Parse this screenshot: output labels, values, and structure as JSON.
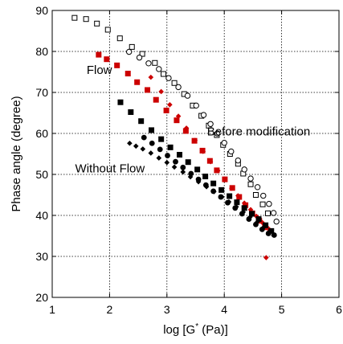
{
  "chart_data": {
    "type": "scatter",
    "title": "",
    "xlabel": "log [G",
    "xlabel_sup": "*",
    "xlabel_tail": " (Pa)]",
    "ylabel": "Phase angle (degree)",
    "xlim": [
      1,
      6
    ],
    "ylim": [
      20,
      90
    ],
    "xticks": [
      1,
      2,
      3,
      4,
      5,
      6
    ],
    "yticks": [
      20,
      30,
      40,
      50,
      60,
      70,
      80,
      90
    ],
    "grid": "dotted",
    "annotations": [
      {
        "text": "Flow",
        "x": 1.6,
        "y": 74.5
      },
      {
        "text": "Before modification",
        "x": 3.7,
        "y": 59.5
      },
      {
        "text": "Without Flow",
        "x": 1.4,
        "y": 50.5
      }
    ],
    "series": [
      {
        "marker": "open-square",
        "color": "#000000",
        "points": [
          [
            1.39,
            88.2
          ],
          [
            1.59,
            87.9
          ],
          [
            1.78,
            86.8
          ],
          [
            1.97,
            85.3
          ],
          [
            2.18,
            83.2
          ],
          [
            2.39,
            81.1
          ],
          [
            2.57,
            79.4
          ],
          [
            2.79,
            77.2
          ],
          [
            2.94,
            74.5
          ],
          [
            3.13,
            72.3
          ],
          [
            3.3,
            69.6
          ],
          [
            3.45,
            66.8
          ],
          [
            3.6,
            64.3
          ],
          [
            3.73,
            61.9
          ],
          [
            3.87,
            59.6
          ],
          [
            3.98,
            57.2
          ],
          [
            4.1,
            55.0
          ],
          [
            4.24,
            52.6
          ],
          [
            4.33,
            50.2
          ],
          [
            4.46,
            47.6
          ],
          [
            4.55,
            45.0
          ],
          [
            4.67,
            42.7
          ],
          [
            4.76,
            40.5
          ]
        ]
      },
      {
        "marker": "open-circle",
        "color": "#000000",
        "points": [
          [
            2.34,
            79.9
          ],
          [
            2.52,
            78.5
          ],
          [
            2.68,
            77.1
          ],
          [
            2.86,
            75.7
          ],
          [
            3.03,
            73.5
          ],
          [
            3.2,
            71.3
          ],
          [
            3.36,
            69.2
          ],
          [
            3.51,
            66.8
          ],
          [
            3.64,
            64.5
          ],
          [
            3.76,
            62.3
          ],
          [
            3.88,
            60.0
          ],
          [
            4.0,
            57.7
          ],
          [
            4.12,
            55.6
          ],
          [
            4.24,
            53.4
          ],
          [
            4.35,
            51.2
          ],
          [
            4.46,
            49.0
          ],
          [
            4.58,
            46.9
          ],
          [
            4.68,
            44.8
          ],
          [
            4.78,
            42.8
          ],
          [
            4.86,
            40.6
          ],
          [
            4.91,
            38.5
          ]
        ]
      },
      {
        "marker": "filled-square",
        "color": "#cc0000",
        "points": [
          [
            1.81,
            79.2
          ],
          [
            1.95,
            78.1
          ],
          [
            2.13,
            76.6
          ],
          [
            2.32,
            74.6
          ],
          [
            2.48,
            72.5
          ],
          [
            2.66,
            70.6
          ],
          [
            2.81,
            68.2
          ],
          [
            2.99,
            65.6
          ],
          [
            3.17,
            63.2
          ],
          [
            3.33,
            60.6
          ],
          [
            3.48,
            58.2
          ],
          [
            3.62,
            55.8
          ],
          [
            3.75,
            53.3
          ],
          [
            3.87,
            51.0
          ],
          [
            4.01,
            48.8
          ],
          [
            4.14,
            46.7
          ],
          [
            4.26,
            44.5
          ],
          [
            4.37,
            42.5
          ],
          [
            4.49,
            40.5
          ],
          [
            4.61,
            38.7
          ],
          [
            4.71,
            37.1
          ]
        ]
      },
      {
        "marker": "filled-diamond",
        "color": "#cc0000",
        "points": [
          [
            2.72,
            73.7
          ],
          [
            2.9,
            70.2
          ],
          [
            3.05,
            67.0
          ],
          [
            3.2,
            64.2
          ],
          [
            3.34,
            61.3
          ],
          [
            3.49,
            58.3
          ],
          [
            3.63,
            55.6
          ],
          [
            3.76,
            53.1
          ],
          [
            3.89,
            50.9
          ],
          [
            4.01,
            48.7
          ],
          [
            4.13,
            46.6
          ],
          [
            4.24,
            44.8
          ],
          [
            4.35,
            43.0
          ],
          [
            4.46,
            41.4
          ],
          [
            4.56,
            39.8
          ],
          [
            4.66,
            38.3
          ],
          [
            4.76,
            36.9
          ],
          [
            4.73,
            29.7
          ]
        ]
      },
      {
        "marker": "filled-square",
        "color": "#000000",
        "points": [
          [
            2.19,
            67.6
          ],
          [
            2.37,
            65.2
          ],
          [
            2.55,
            63.0
          ],
          [
            2.73,
            60.8
          ],
          [
            2.9,
            58.6
          ],
          [
            3.06,
            56.6
          ],
          [
            3.22,
            54.8
          ],
          [
            3.37,
            53.0
          ],
          [
            3.53,
            51.2
          ],
          [
            3.67,
            49.5
          ],
          [
            3.81,
            47.8
          ],
          [
            3.95,
            46.2
          ],
          [
            4.09,
            44.7
          ],
          [
            4.22,
            43.2
          ],
          [
            4.35,
            41.8
          ],
          [
            4.48,
            40.4
          ],
          [
            4.6,
            39.1
          ],
          [
            4.72,
            37.6
          ],
          [
            4.82,
            36.2
          ]
        ]
      },
      {
        "marker": "filled-diamond",
        "color": "#000000",
        "points": [
          [
            2.35,
            57.6
          ],
          [
            2.46,
            56.9
          ],
          [
            2.58,
            56.2
          ],
          [
            2.72,
            55.2
          ],
          [
            2.86,
            54.0
          ],
          [
            3.0,
            52.9
          ],
          [
            3.13,
            51.8
          ],
          [
            3.28,
            50.6
          ],
          [
            3.41,
            49.4
          ],
          [
            3.55,
            48.2
          ],
          [
            3.69,
            47.0
          ],
          [
            3.82,
            45.8
          ],
          [
            3.96,
            44.5
          ],
          [
            4.08,
            43.3
          ],
          [
            4.21,
            42.1
          ],
          [
            4.33,
            40.8
          ],
          [
            4.45,
            39.6
          ],
          [
            4.57,
            38.3
          ],
          [
            4.68,
            37.0
          ],
          [
            4.78,
            35.9
          ],
          [
            4.86,
            35.2
          ]
        ]
      },
      {
        "marker": "filled-circle",
        "color": "#000000",
        "points": [
          [
            2.6,
            59.0
          ],
          [
            2.74,
            57.6
          ],
          [
            2.88,
            56.1
          ],
          [
            3.01,
            54.6
          ],
          [
            3.15,
            53.1
          ],
          [
            3.28,
            51.7
          ],
          [
            3.42,
            50.2
          ],
          [
            3.55,
            48.8
          ],
          [
            3.68,
            47.4
          ],
          [
            3.81,
            45.9
          ],
          [
            3.94,
            44.5
          ],
          [
            4.06,
            43.1
          ],
          [
            4.19,
            41.8
          ],
          [
            4.31,
            40.4
          ],
          [
            4.43,
            39.1
          ],
          [
            4.55,
            37.8
          ],
          [
            4.66,
            36.6
          ],
          [
            4.77,
            35.6
          ],
          [
            4.87,
            35.2
          ]
        ]
      }
    ]
  }
}
